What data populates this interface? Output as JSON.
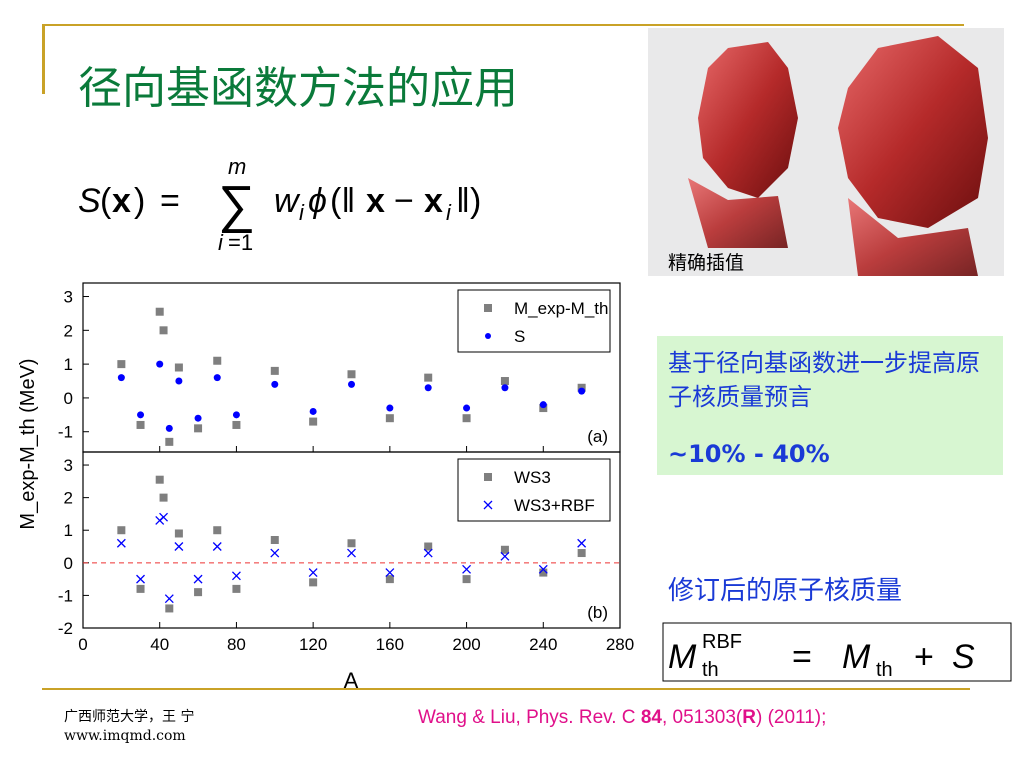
{
  "slide": {
    "title": "径向基函数方法的应用",
    "image_caption": "精确插值",
    "box_text": "基于径向基函数进一步提高原子核质量预言",
    "box_range": "~10% - 40%",
    "revised_label": "修订后的原子核质量",
    "footer_org": "广西师范大学，王 宁",
    "footer_url": "www.imqmd.com",
    "citation": {
      "authors": "Wang & Liu, Phys. Rev. C ",
      "volume": "84",
      "pages": ", 051303(",
      "letter": "R",
      "year": ") (2011);"
    },
    "accent_colors": {
      "title": "#0a7a3a",
      "blue_text": "#1a3ad6",
      "citation": "#e0108a",
      "rule": "#c9a227",
      "box": "#d7f6d1"
    }
  },
  "chart_data": [
    {
      "type": "scatter",
      "panel_label": "(a)",
      "xlabel": "A",
      "ylabel": "M_exp-M_th (MeV)",
      "xlim": [
        0,
        280
      ],
      "ylim": [
        -1.6,
        3.4
      ],
      "xticks": [
        "0",
        "40",
        "80",
        "120",
        "160",
        "200",
        "240",
        "280"
      ],
      "yticks": [
        "3",
        "2",
        "1",
        "0",
        "-1"
      ],
      "legend_position": "top-right",
      "series": [
        {
          "name": "M_exp-M_th",
          "marker": "square",
          "color": "#7f7f7f",
          "x": [
            20,
            30,
            40,
            42,
            45,
            50,
            60,
            70,
            80,
            100,
            120,
            140,
            160,
            180,
            200,
            220,
            240,
            260
          ],
          "y": [
            1.0,
            -0.8,
            2.55,
            2.0,
            -1.3,
            0.9,
            -0.9,
            1.1,
            -0.8,
            0.8,
            -0.7,
            0.7,
            -0.6,
            0.6,
            -0.6,
            0.5,
            -0.3,
            0.3
          ]
        },
        {
          "name": "S",
          "marker": "dot",
          "color": "#0000ff",
          "x": [
            20,
            30,
            40,
            45,
            50,
            60,
            70,
            80,
            100,
            120,
            140,
            160,
            180,
            200,
            220,
            240,
            260
          ],
          "y": [
            0.6,
            -0.5,
            1.0,
            -0.9,
            0.5,
            -0.6,
            0.6,
            -0.5,
            0.4,
            -0.4,
            0.4,
            -0.3,
            0.3,
            -0.3,
            0.3,
            -0.2,
            0.2
          ]
        }
      ]
    },
    {
      "type": "scatter",
      "panel_label": "(b)",
      "xlabel": "A",
      "ylabel": "M_exp-M_th (MeV)",
      "xlim": [
        0,
        280
      ],
      "ylim": [
        -2,
        3.4
      ],
      "xticks": [
        "0",
        "40",
        "80",
        "120",
        "160",
        "200",
        "240",
        "280"
      ],
      "yticks": [
        "3",
        "2",
        "1",
        "0",
        "-1",
        "-2"
      ],
      "legend_position": "top-right",
      "series": [
        {
          "name": "WS3",
          "marker": "square",
          "color": "#7f7f7f",
          "x": [
            20,
            30,
            40,
            42,
            45,
            50,
            60,
            70,
            80,
            100,
            120,
            140,
            160,
            180,
            200,
            220,
            240,
            260
          ],
          "y": [
            1.0,
            -0.8,
            2.55,
            2.0,
            -1.4,
            0.9,
            -0.9,
            1.0,
            -0.8,
            0.7,
            -0.6,
            0.6,
            -0.5,
            0.5,
            -0.5,
            0.4,
            -0.3,
            0.3
          ]
        },
        {
          "name": "WS3+RBF",
          "marker": "cross",
          "color": "#0000ff",
          "x": [
            20,
            30,
            40,
            42,
            45,
            50,
            60,
            70,
            80,
            100,
            120,
            140,
            160,
            180,
            200,
            220,
            240,
            260
          ],
          "y": [
            0.6,
            -0.5,
            1.3,
            1.4,
            -1.1,
            0.5,
            -0.5,
            0.5,
            -0.4,
            0.3,
            -0.3,
            0.3,
            -0.3,
            0.3,
            -0.2,
            0.2,
            -0.2,
            0.6
          ]
        }
      ]
    }
  ]
}
